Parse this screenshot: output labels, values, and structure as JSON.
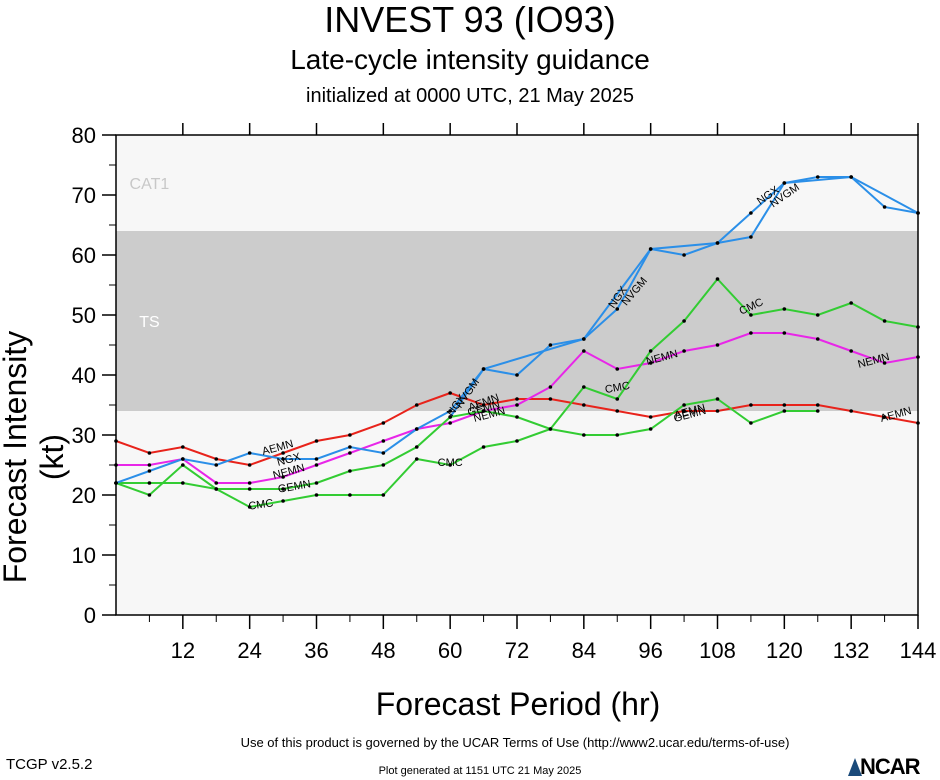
{
  "title": "INVEST 93 (IO93)",
  "subtitle": "Late-cycle intensity guidance",
  "subtitle2": "initialized at 0000 UTC, 21 May 2025",
  "footer": {
    "terms": "Use of this product is governed by the UCAR Terms of Use (http://www2.ucar.edu/terms-of-use)",
    "generated": "Plot generated at 1151 UTC   21 May 2025",
    "version": "TCGP v2.5.2",
    "logo_text": "NCAR"
  },
  "chart_data": {
    "type": "line",
    "xlabel": "Forecast Period (hr)",
    "ylabel": "Forecast Intensity (kt)",
    "xlim": [
      0,
      144
    ],
    "ylim": [
      0,
      80
    ],
    "xticks": [
      12,
      24,
      36,
      48,
      60,
      72,
      84,
      96,
      108,
      120,
      132,
      144
    ],
    "yticks": [
      0,
      10,
      20,
      30,
      40,
      50,
      60,
      70,
      80
    ],
    "bands": [
      {
        "label": "TS",
        "from": 34,
        "to": 64,
        "color": "#cccccc",
        "label_color": "#ffffff",
        "label_y": 49
      },
      {
        "label": "CAT1",
        "from": 64,
        "to": 83,
        "color": "#f7f7f7",
        "label_color": "#c8c8c8",
        "label_y": 72
      },
      {
        "label": "",
        "from": 0,
        "to": 34,
        "color": "#f7f7f7"
      }
    ],
    "series": [
      {
        "name": "AEMN",
        "color": "#e8231b",
        "points": [
          [
            0,
            29
          ],
          [
            6,
            27
          ],
          [
            12,
            28
          ],
          [
            18,
            26
          ],
          [
            24,
            25
          ],
          [
            30,
            27
          ],
          [
            36,
            29
          ],
          [
            42,
            30
          ],
          [
            48,
            32
          ],
          [
            54,
            35
          ],
          [
            60,
            37
          ],
          [
            66,
            35
          ],
          [
            72,
            36
          ],
          [
            78,
            36
          ],
          [
            84,
            35
          ],
          [
            90,
            34
          ],
          [
            96,
            33
          ],
          [
            102,
            34
          ],
          [
            108,
            34
          ],
          [
            114,
            35
          ],
          [
            120,
            35
          ],
          [
            126,
            35
          ],
          [
            132,
            34
          ],
          [
            138,
            33
          ],
          [
            144,
            32
          ]
        ],
        "labels": [
          [
            29,
            28,
            -15
          ],
          [
            66,
            35.5,
            -20
          ],
          [
            103,
            34,
            -15
          ],
          [
            140,
            33.5,
            -15
          ]
        ]
      },
      {
        "name": "NEMN",
        "color": "#e826e8",
        "points": [
          [
            0,
            25
          ],
          [
            6,
            25
          ],
          [
            12,
            26
          ],
          [
            18,
            22
          ],
          [
            24,
            22
          ],
          [
            30,
            23
          ],
          [
            36,
            25
          ],
          [
            42,
            27
          ],
          [
            48,
            29
          ],
          [
            54,
            31
          ],
          [
            60,
            32
          ],
          [
            66,
            34
          ],
          [
            72,
            35
          ],
          [
            78,
            38
          ],
          [
            84,
            44
          ],
          [
            90,
            41
          ],
          [
            96,
            42
          ],
          [
            102,
            44
          ],
          [
            108,
            45
          ],
          [
            114,
            47
          ],
          [
            120,
            47
          ],
          [
            126,
            46
          ],
          [
            132,
            44
          ],
          [
            138,
            42
          ],
          [
            144,
            43
          ]
        ],
        "labels": [
          [
            31,
            24,
            -15
          ],
          [
            67,
            33.5,
            -15
          ],
          [
            98,
            43,
            -15
          ],
          [
            136,
            42.5,
            -15
          ]
        ]
      },
      {
        "name": "GEMN",
        "color": "#33cc33",
        "points": [
          [
            0,
            22
          ],
          [
            6,
            22
          ],
          [
            12,
            22
          ],
          [
            18,
            21
          ],
          [
            24,
            21
          ],
          [
            30,
            21
          ],
          [
            36,
            22
          ],
          [
            42,
            24
          ],
          [
            48,
            25
          ],
          [
            54,
            28
          ],
          [
            60,
            33
          ],
          [
            66,
            34
          ],
          [
            72,
            33
          ],
          [
            78,
            31
          ],
          [
            84,
            30
          ],
          [
            90,
            30
          ],
          [
            96,
            31
          ],
          [
            102,
            35
          ],
          [
            108,
            36
          ],
          [
            114,
            32
          ],
          [
            120,
            34
          ],
          [
            126,
            34
          ]
        ],
        "labels": [
          [
            32,
            21.5,
            -10
          ],
          [
            66,
            34.5,
            -15
          ],
          [
            103,
            33.5,
            -15
          ]
        ]
      },
      {
        "name": "CMC",
        "color": "#33cc33",
        "points": [
          [
            0,
            22
          ],
          [
            6,
            20
          ],
          [
            12,
            25
          ],
          [
            18,
            21
          ],
          [
            24,
            18
          ],
          [
            30,
            19
          ],
          [
            36,
            20
          ],
          [
            42,
            20
          ],
          [
            48,
            20
          ],
          [
            54,
            26
          ],
          [
            60,
            25
          ],
          [
            66,
            28
          ],
          [
            72,
            29
          ],
          [
            78,
            31
          ],
          [
            84,
            38
          ],
          [
            90,
            36
          ],
          [
            96,
            44
          ],
          [
            102,
            49
          ],
          [
            108,
            56
          ],
          [
            114,
            50
          ],
          [
            120,
            51
          ],
          [
            126,
            50
          ],
          [
            132,
            52
          ],
          [
            138,
            49
          ],
          [
            144,
            48
          ]
        ],
        "labels": [
          [
            26,
            18.5,
            -8
          ],
          [
            60,
            25.5,
            0
          ],
          [
            90,
            38,
            -10
          ],
          [
            114,
            51.5,
            -25
          ]
        ]
      },
      {
        "name": "NGX",
        "color": "#2b8fe8",
        "points": [
          [
            0,
            22
          ],
          [
            6,
            24
          ],
          [
            12,
            26
          ],
          [
            18,
            25
          ],
          [
            24,
            27
          ],
          [
            30,
            26
          ],
          [
            36,
            26
          ],
          [
            42,
            28
          ],
          [
            48,
            27
          ],
          [
            54,
            31
          ],
          [
            60,
            34
          ],
          [
            66,
            41
          ],
          [
            72,
            40
          ],
          [
            78,
            45
          ],
          [
            84,
            46
          ],
          [
            90,
            51
          ],
          [
            96,
            61
          ],
          [
            102,
            60
          ],
          [
            108,
            62
          ],
          [
            114,
            63
          ],
          [
            120,
            72
          ],
          [
            126,
            73
          ],
          [
            132,
            73
          ],
          [
            138,
            68
          ],
          [
            144,
            67
          ]
        ],
        "labels": [
          [
            31,
            26,
            -15
          ],
          [
            61,
            35,
            -55
          ],
          [
            90,
            53,
            -55
          ],
          [
            117,
            70,
            -35
          ]
        ]
      },
      {
        "name": "NVGM",
        "color": "#2b8fe8",
        "points": [
          [
            60,
            33
          ],
          [
            66,
            41
          ],
          [
            84,
            46
          ],
          [
            96,
            61
          ],
          [
            108,
            62
          ],
          [
            114,
            67
          ],
          [
            120,
            72
          ],
          [
            132,
            73
          ],
          [
            144,
            67
          ]
        ],
        "labels": [
          [
            63,
            37,
            -55
          ],
          [
            93,
            54,
            -50
          ],
          [
            120,
            70,
            -35
          ]
        ]
      }
    ]
  }
}
